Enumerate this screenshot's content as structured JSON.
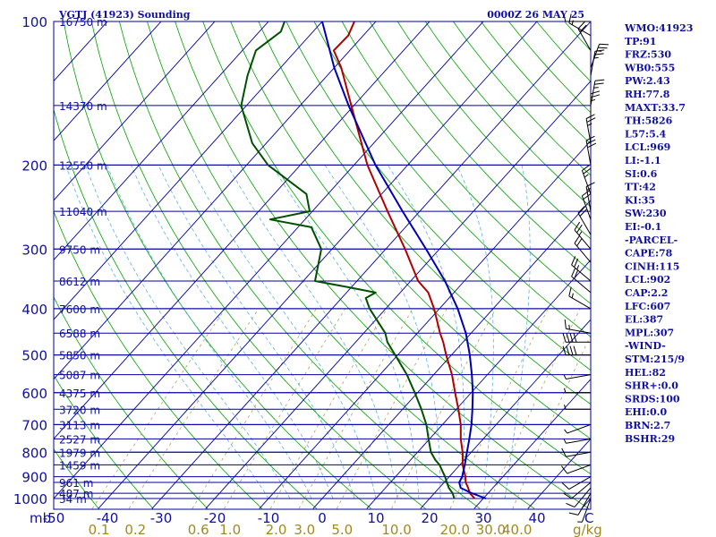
{
  "header": {
    "station": "VGTJ (41923) Sounding",
    "time": "0000Z 26 MAY 25"
  },
  "indices": [
    "WMO:41923",
    "TP:91",
    "FRZ:530",
    "WB0:555",
    "PW:2.43",
    "RH:77.8",
    "MAXT:33.7",
    "TH:5826",
    "L57:5.4",
    "LCL:969",
    "LI:-1.1",
    "SI:0.6",
    "TT:42",
    "KI:35",
    "SW:230",
    "EI:-0.1",
    "-PARCEL-",
    "CAPE:78",
    "CINH:115",
    "LCL:902",
    "CAP:2.2",
    "LFC:607",
    "EL:387",
    "MPL:307",
    "-WIND-",
    "STM:215/9",
    "HEL:82",
    "SHR+:0.0",
    "SRDS:100",
    "EHI:0.0",
    "BRN:2.7",
    "BSHR:29"
  ],
  "colors": {
    "frame": "#0000a0",
    "isobar": "#0000a0",
    "isotherm": "#0000a0",
    "dry_adiabat": "#00a000",
    "moist_adiabat": "#60b0e0",
    "mixing_ratio": "#b0a060",
    "temperature": "#b00000",
    "dewpoint": "#005000",
    "parcel": "#0000b0",
    "text": "#1010a0",
    "mixing_label": "#a08a20",
    "wind_barb": "#000000"
  },
  "chart_data": {
    "type": "line",
    "title": "VGTJ (41923) Sounding",
    "xlabel_unit": "C",
    "mixing_unit": "g/kg",
    "pressure_unit": "mb",
    "xlim": [
      -50,
      50
    ],
    "ylim_pressure": [
      1000,
      100
    ],
    "y_scale": "log",
    "x_ticks": [
      -50,
      -40,
      -30,
      -20,
      -10,
      0,
      10,
      20,
      30,
      40
    ],
    "x_tick_labels": [
      "-50",
      "-40",
      "-30",
      "-20",
      "-10",
      "0",
      "10",
      "20",
      "30",
      "40"
    ],
    "pressure_ticks": [
      1000,
      900,
      800,
      700,
      600,
      500,
      400,
      300,
      200,
      100
    ],
    "pressure_tick_labels": [
      "1000",
      "900",
      "800",
      "700",
      "600",
      "500",
      "400",
      "300",
      "200",
      "100"
    ],
    "heights": [
      {
        "p": 1000,
        "label": "34 m"
      },
      {
        "p": 975,
        "label": "487 m"
      },
      {
        "p": 925,
        "label": "961 m"
      },
      {
        "p": 850,
        "label": "1459 m"
      },
      {
        "p": 800,
        "label": "1979 m"
      },
      {
        "p": 750,
        "label": "2527 m"
      },
      {
        "p": 700,
        "label": "3113 m"
      },
      {
        "p": 650,
        "label": "3720 m"
      },
      {
        "p": 600,
        "label": "4375 m"
      },
      {
        "p": 550,
        "label": "5087 m"
      },
      {
        "p": 500,
        "label": "5850 m"
      },
      {
        "p": 450,
        "label": "6588 m"
      },
      {
        "p": 400,
        "label": "7600 m"
      },
      {
        "p": 350,
        "label": "8612 m"
      },
      {
        "p": 300,
        "label": "9750 m"
      },
      {
        "p": 250,
        "label": "11040 m"
      },
      {
        "p": 200,
        "label": "12550 m"
      },
      {
        "p": 150,
        "label": "14370 m"
      },
      {
        "p": 100,
        "label": "16750 m"
      }
    ],
    "mixing_ratio_labels": [
      "0.1",
      "0.2",
      "0.6",
      "1.0",
      "2.0",
      "3.0",
      "5.0",
      "10.0",
      "20.0",
      "30.0",
      "40.0"
    ],
    "mixing_ratio_values": [
      0.1,
      0.2,
      0.6,
      1.0,
      2.0,
      3.0,
      5.0,
      10.0,
      20.0,
      30.0,
      40.0
    ],
    "series": [
      {
        "name": "temperature",
        "points": [
          [
            1000,
            28.4
          ],
          [
            975,
            26.6
          ],
          [
            950,
            25.4
          ],
          [
            925,
            24.0
          ],
          [
            900,
            23.0
          ],
          [
            850,
            20.5
          ],
          [
            800,
            18.4
          ],
          [
            750,
            15.8
          ],
          [
            700,
            13.4
          ],
          [
            650,
            10.4
          ],
          [
            600,
            7.0
          ],
          [
            550,
            3.4
          ],
          [
            500,
            -1.0
          ],
          [
            470,
            -3.7
          ],
          [
            450,
            -5.8
          ],
          [
            400,
            -11.0
          ],
          [
            370,
            -14.8
          ],
          [
            350,
            -18.6
          ],
          [
            300,
            -26.4
          ],
          [
            250,
            -36.0
          ],
          [
            200,
            -47.5
          ],
          [
            150,
            -60.5
          ],
          [
            125,
            -68.7
          ],
          [
            115,
            -73.0
          ],
          [
            107,
            -72.8
          ],
          [
            100,
            -74.0
          ]
        ]
      },
      {
        "name": "dewpoint",
        "points": [
          [
            1000,
            24.6
          ],
          [
            975,
            23.4
          ],
          [
            950,
            21.8
          ],
          [
            925,
            20.5
          ],
          [
            900,
            19.2
          ],
          [
            850,
            16.2
          ],
          [
            830,
            14.6
          ],
          [
            800,
            12.5
          ],
          [
            750,
            9.8
          ],
          [
            700,
            7.0
          ],
          [
            650,
            3.5
          ],
          [
            600,
            -0.5
          ],
          [
            550,
            -5.0
          ],
          [
            500,
            -10.5
          ],
          [
            470,
            -14.1
          ],
          [
            450,
            -16.0
          ],
          [
            400,
            -23.0
          ],
          [
            380,
            -25.5
          ],
          [
            370,
            -24.6
          ],
          [
            360,
            -31.0
          ],
          [
            350,
            -37.8
          ],
          [
            300,
            -42.0
          ],
          [
            270,
            -47.5
          ],
          [
            260,
            -56.5
          ],
          [
            250,
            -50.5
          ],
          [
            230,
            -54.0
          ],
          [
            200,
            -66.0
          ],
          [
            180,
            -72.6
          ],
          [
            150,
            -81.0
          ],
          [
            130,
            -84.8
          ],
          [
            115,
            -87.5
          ],
          [
            105,
            -86.0
          ],
          [
            100,
            -87.0
          ]
        ]
      },
      {
        "name": "parcel",
        "points": [
          [
            1000,
            30.5
          ],
          [
            975,
            27.0
          ],
          [
            950,
            24.0
          ],
          [
            925,
            22.8
          ],
          [
            900,
            22.4
          ],
          [
            850,
            20.9
          ],
          [
            800,
            19.2
          ],
          [
            750,
            17.4
          ],
          [
            700,
            15.4
          ],
          [
            650,
            13.0
          ],
          [
            600,
            10.3
          ],
          [
            550,
            7.1
          ],
          [
            500,
            3.4
          ],
          [
            450,
            -1.0
          ],
          [
            400,
            -6.6
          ],
          [
            350,
            -13.6
          ],
          [
            300,
            -22.5
          ],
          [
            250,
            -33.2
          ],
          [
            200,
            -46.0
          ],
          [
            150,
            -61.0
          ],
          [
            125,
            -70.0
          ],
          [
            100,
            -80.0
          ]
        ]
      }
    ],
    "wind_levels": [
      {
        "p": 1000,
        "dir": 200,
        "kt": 5
      },
      {
        "p": 975,
        "dir": 210,
        "kt": 10
      },
      {
        "p": 950,
        "dir": 220,
        "kt": 10
      },
      {
        "p": 925,
        "dir": 230,
        "kt": 10
      },
      {
        "p": 900,
        "dir": 240,
        "kt": 10
      },
      {
        "p": 850,
        "dir": 250,
        "kt": 10
      },
      {
        "p": 800,
        "dir": 260,
        "kt": 10
      },
      {
        "p": 750,
        "dir": 260,
        "kt": 5
      },
      {
        "p": 700,
        "dir": 250,
        "kt": 5
      },
      {
        "p": 650,
        "dir": 270,
        "kt": 5
      },
      {
        "p": 600,
        "dir": 270,
        "kt": 5
      },
      {
        "p": 550,
        "dir": 260,
        "kt": 5
      },
      {
        "p": 500,
        "dir": 270,
        "kt": 40
      },
      {
        "p": 470,
        "dir": 270,
        "kt": 40
      },
      {
        "p": 450,
        "dir": 280,
        "kt": 15
      },
      {
        "p": 400,
        "dir": 300,
        "kt": 15
      },
      {
        "p": 370,
        "dir": 310,
        "kt": 20
      },
      {
        "p": 350,
        "dir": 310,
        "kt": 25
      },
      {
        "p": 320,
        "dir": 320,
        "kt": 20
      },
      {
        "p": 300,
        "dir": 320,
        "kt": 25
      },
      {
        "p": 280,
        "dir": 330,
        "kt": 20
      },
      {
        "p": 260,
        "dir": 340,
        "kt": 20
      },
      {
        "p": 250,
        "dir": 350,
        "kt": 15
      },
      {
        "p": 230,
        "dir": 340,
        "kt": 25
      },
      {
        "p": 200,
        "dir": 350,
        "kt": 30
      },
      {
        "p": 180,
        "dir": 350,
        "kt": 25
      },
      {
        "p": 160,
        "dir": 360,
        "kt": 25
      },
      {
        "p": 150,
        "dir": 10,
        "kt": 25
      },
      {
        "p": 130,
        "dir": 10,
        "kt": 25
      },
      {
        "p": 125,
        "dir": 20,
        "kt": 25
      },
      {
        "p": 115,
        "dir": 330,
        "kt": 20
      },
      {
        "p": 107,
        "dir": 300,
        "kt": 15
      },
      {
        "p": 100,
        "dir": 270,
        "kt": 10
      }
    ]
  }
}
